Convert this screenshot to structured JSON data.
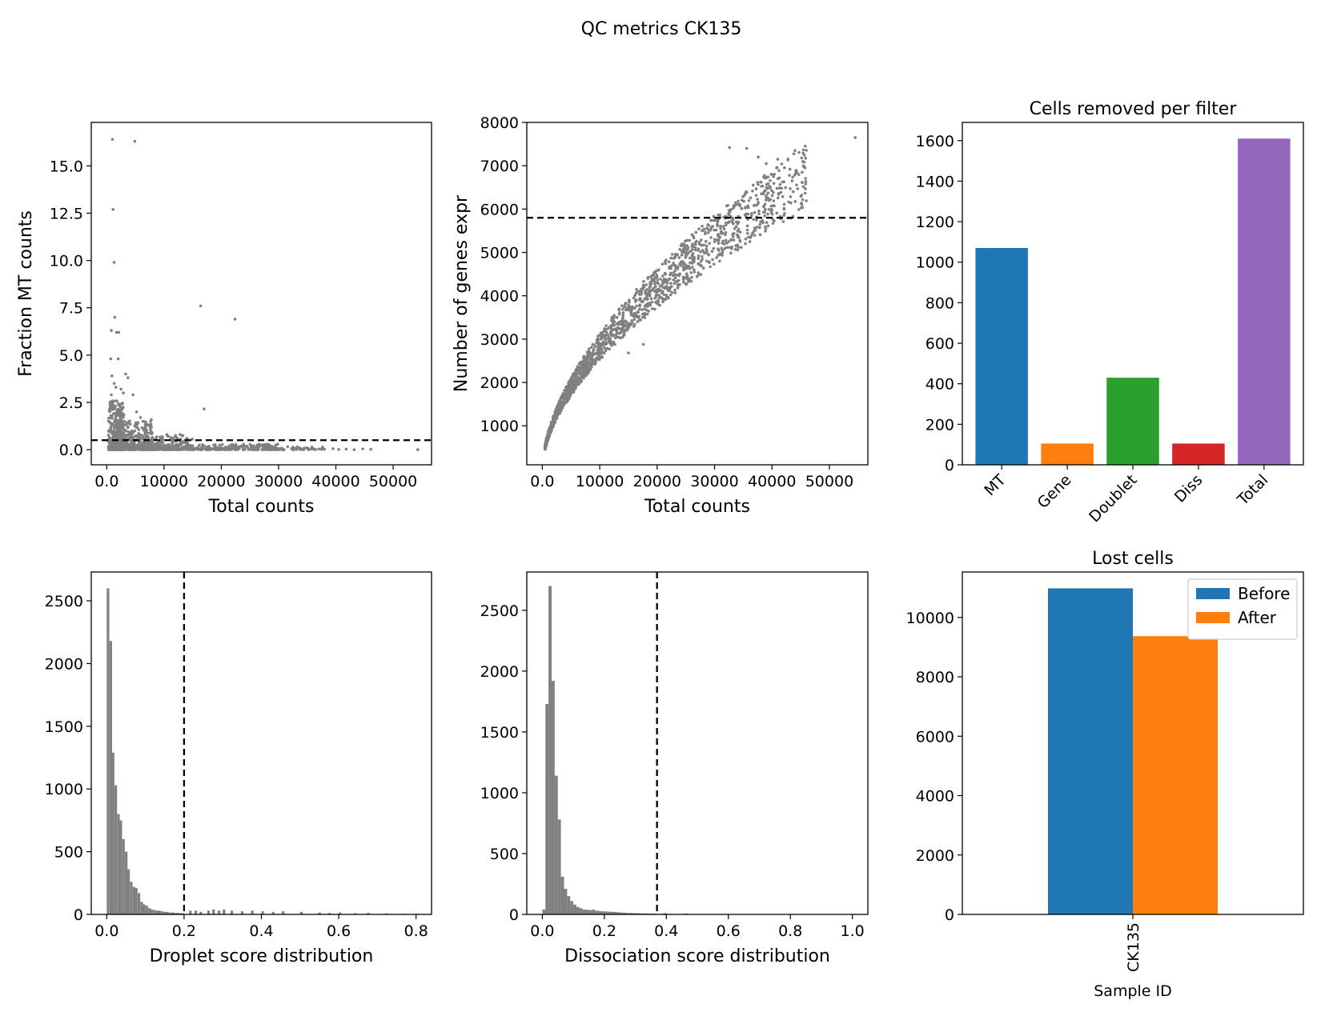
{
  "figure": {
    "title": "QC metrics CK135"
  },
  "chart_data": [
    {
      "id": "mt_scatter",
      "type": "scatter",
      "title": "",
      "xlabel": "Total counts",
      "ylabel": "Fraction MT counts",
      "xlim": [
        -2700,
        56700
      ],
      "ylim": [
        -0.8,
        17.3
      ],
      "xticks": [
        0,
        10000,
        20000,
        30000,
        40000,
        50000
      ],
      "yticks": [
        0.0,
        2.5,
        5.0,
        7.5,
        10.0,
        12.5,
        15.0
      ],
      "ytick_decimals": 1,
      "color": "#808080",
      "threshold": {
        "axis": "y",
        "value": 0.5,
        "style": "dashed"
      },
      "points": [
        [
          1000,
          16.4
        ],
        [
          4900,
          16.3
        ],
        [
          1100,
          12.7
        ],
        [
          1300,
          9.9
        ],
        [
          1400,
          7.0
        ],
        [
          16400,
          7.6
        ],
        [
          22400,
          6.9
        ],
        [
          1700,
          6.2
        ],
        [
          2100,
          6.2
        ],
        [
          800,
          6.3
        ],
        [
          700,
          4.8
        ],
        [
          2000,
          4.8
        ],
        [
          3300,
          4.0
        ],
        [
          3700,
          3.8
        ],
        [
          900,
          3.9
        ],
        [
          1300,
          3.5
        ],
        [
          1600,
          3.3
        ],
        [
          2500,
          3.2
        ],
        [
          2900,
          3.0
        ],
        [
          4600,
          2.9
        ],
        [
          17000,
          2.15
        ],
        [
          5200,
          2.0
        ],
        [
          5900,
          1.7
        ],
        [
          6300,
          1.5
        ],
        [
          7000,
          1.3
        ],
        [
          12000,
          0.75
        ],
        [
          14000,
          0.6
        ],
        [
          800,
          2.9
        ],
        [
          600,
          2.5
        ],
        [
          900,
          2.2
        ]
      ],
      "cluster": [
        {
          "x": [
            300,
            3000
          ],
          "y": [
            0.0,
            2.6
          ],
          "n": 380
        },
        {
          "x": [
            1500,
            8000
          ],
          "y": [
            0.0,
            1.6
          ],
          "n": 300
        },
        {
          "x": [
            3000,
            15000
          ],
          "y": [
            0.0,
            0.8
          ],
          "n": 260
        },
        {
          "x": [
            8000,
            30000
          ],
          "y": [
            0.0,
            0.3
          ],
          "n": 260
        },
        {
          "x": [
            25000,
            38000
          ],
          "y": [
            0.0,
            0.15
          ],
          "n": 90
        }
      ],
      "sparse_points": [
        [
          38000,
          0.02
        ],
        [
          39500,
          0.05
        ],
        [
          40500,
          0.01
        ],
        [
          41800,
          0.03
        ],
        [
          43200,
          0.0
        ],
        [
          44700,
          0.04
        ],
        [
          46100,
          0.02
        ],
        [
          54300,
          0.0
        ]
      ]
    },
    {
      "id": "genes_scatter",
      "type": "scatter",
      "title": "",
      "xlabel": "Total counts",
      "ylabel": "Number of genes expr",
      "xlim": [
        -2700,
        56700
      ],
      "ylim": [
        100,
        8000
      ],
      "xticks": [
        0,
        10000,
        20000,
        30000,
        40000,
        50000
      ],
      "yticks": [
        1000,
        2000,
        3000,
        4000,
        5000,
        6000,
        7000,
        8000
      ],
      "ytick_decimals": 0,
      "color": "#808080",
      "threshold": {
        "axis": "y",
        "value": 5800,
        "style": "dashed"
      },
      "trend": {
        "a": 760,
        "b": 0.57,
        "note": "genes ~ a * (counts/1000)^b"
      },
      "cluster_range": [
        500,
        46000
      ],
      "cluster_n": 1700,
      "points": [
        [
          54500,
          7650
        ],
        [
          45800,
          7450
        ],
        [
          44000,
          7350
        ],
        [
          43500,
          6650
        ],
        [
          41000,
          7150
        ],
        [
          35600,
          7400
        ],
        [
          32600,
          7420
        ],
        [
          15000,
          2680
        ],
        [
          17600,
          2880
        ],
        [
          37600,
          7200
        ],
        [
          39000,
          7050
        ]
      ]
    },
    {
      "id": "filter_bar",
      "type": "bar",
      "title": "Cells removed per filter",
      "xlabel": "",
      "ylabel": "",
      "categories": [
        "MT",
        "Gene",
        "Doublet",
        "Diss",
        "Total"
      ],
      "values": [
        1070,
        105,
        430,
        105,
        1610
      ],
      "colors": [
        "#1f77b4",
        "#ff7f0e",
        "#2ca02c",
        "#d62728",
        "#9467bd"
      ],
      "ylim": [
        0,
        1690
      ],
      "yticks": [
        0,
        200,
        400,
        600,
        800,
        1000,
        1200,
        1400,
        1600
      ]
    },
    {
      "id": "droplet_hist",
      "type": "bar",
      "title": "",
      "xlabel": "Droplet score distribution",
      "ylabel": "",
      "xlim": [
        -0.04,
        0.84
      ],
      "ylim": [
        0,
        2730
      ],
      "xticks": [
        0.0,
        0.2,
        0.4,
        0.6,
        0.8
      ],
      "yticks": [
        0,
        500,
        1000,
        1500,
        2000,
        2500
      ],
      "bin_width": 0.0067,
      "color": "#808080",
      "threshold": {
        "axis": "x",
        "value": 0.2,
        "style": "dashed"
      },
      "bins": [
        [
          0.0,
          2600
        ],
        [
          0.007,
          2180
        ],
        [
          0.013,
          1290
        ],
        [
          0.02,
          1030
        ],
        [
          0.027,
          800
        ],
        [
          0.033,
          750
        ],
        [
          0.04,
          600
        ],
        [
          0.047,
          500
        ],
        [
          0.053,
          360
        ],
        [
          0.06,
          260
        ],
        [
          0.067,
          220
        ],
        [
          0.073,
          210
        ],
        [
          0.08,
          170
        ],
        [
          0.087,
          100
        ],
        [
          0.093,
          80
        ],
        [
          0.1,
          70
        ],
        [
          0.107,
          50
        ],
        [
          0.113,
          40
        ],
        [
          0.12,
          35
        ],
        [
          0.127,
          30
        ],
        [
          0.133,
          30
        ],
        [
          0.14,
          25
        ],
        [
          0.147,
          20
        ],
        [
          0.153,
          20
        ],
        [
          0.16,
          15
        ],
        [
          0.167,
          15
        ],
        [
          0.173,
          12
        ],
        [
          0.18,
          12
        ],
        [
          0.187,
          10
        ],
        [
          0.193,
          10
        ],
        [
          0.213,
          30
        ],
        [
          0.227,
          30
        ],
        [
          0.24,
          20
        ],
        [
          0.26,
          30
        ],
        [
          0.273,
          40
        ],
        [
          0.287,
          30
        ],
        [
          0.3,
          40
        ],
        [
          0.32,
          30
        ],
        [
          0.347,
          25
        ],
        [
          0.373,
          30
        ],
        [
          0.4,
          25
        ],
        [
          0.427,
          20
        ],
        [
          0.453,
          25
        ],
        [
          0.5,
          20
        ],
        [
          0.547,
          15
        ],
        [
          0.573,
          12
        ],
        [
          0.6,
          15
        ],
        [
          0.64,
          10
        ],
        [
          0.673,
          12
        ],
        [
          0.72,
          8
        ],
        [
          0.767,
          5
        ],
        [
          0.8,
          5
        ]
      ]
    },
    {
      "id": "dissociation_hist",
      "type": "bar",
      "title": "",
      "xlabel": "Dissociation score distribution",
      "ylabel": "",
      "xlim": [
        -0.05,
        1.05
      ],
      "ylim": [
        0,
        2815
      ],
      "xticks": [
        0.0,
        0.2,
        0.4,
        0.6,
        0.8,
        1.0
      ],
      "yticks": [
        0,
        500,
        1000,
        1500,
        2000,
        2500
      ],
      "bin_width": 0.01,
      "color": "#808080",
      "threshold": {
        "axis": "x",
        "value": 0.37,
        "style": "dashed"
      },
      "bins": [
        [
          0.0,
          40
        ],
        [
          0.01,
          1730
        ],
        [
          0.02,
          2700
        ],
        [
          0.03,
          1920
        ],
        [
          0.04,
          1140
        ],
        [
          0.05,
          780
        ],
        [
          0.06,
          310
        ],
        [
          0.07,
          210
        ],
        [
          0.08,
          150
        ],
        [
          0.09,
          110
        ],
        [
          0.1,
          80
        ],
        [
          0.11,
          60
        ],
        [
          0.12,
          50
        ],
        [
          0.13,
          40
        ],
        [
          0.14,
          38
        ],
        [
          0.15,
          35
        ],
        [
          0.16,
          40
        ],
        [
          0.17,
          30
        ],
        [
          0.18,
          28
        ],
        [
          0.19,
          25
        ],
        [
          0.2,
          25
        ],
        [
          0.21,
          22
        ],
        [
          0.22,
          22
        ],
        [
          0.23,
          20
        ],
        [
          0.24,
          18
        ],
        [
          0.25,
          15
        ],
        [
          0.26,
          14
        ],
        [
          0.27,
          12
        ],
        [
          0.28,
          12
        ],
        [
          0.29,
          10
        ],
        [
          0.3,
          10
        ],
        [
          0.31,
          9
        ],
        [
          0.32,
          8
        ],
        [
          0.33,
          8
        ],
        [
          0.34,
          7
        ],
        [
          0.35,
          6
        ],
        [
          0.36,
          6
        ],
        [
          0.38,
          5
        ],
        [
          0.39,
          10
        ],
        [
          0.41,
          4
        ],
        [
          0.43,
          3
        ],
        [
          0.46,
          8
        ],
        [
          0.5,
          2
        ]
      ]
    },
    {
      "id": "lost_cells",
      "type": "bar",
      "title": "Lost cells",
      "xlabel": "Sample ID",
      "ylabel": "",
      "categories": [
        "CK135"
      ],
      "series": [
        {
          "name": "Before",
          "values": [
            10980
          ],
          "color": "#1f77b4"
        },
        {
          "name": "After",
          "values": [
            9370
          ],
          "color": "#ff7f0e"
        }
      ],
      "ylim": [
        0,
        11530
      ],
      "yticks": [
        0,
        2000,
        4000,
        6000,
        8000,
        10000
      ],
      "legend": "top-right"
    }
  ]
}
